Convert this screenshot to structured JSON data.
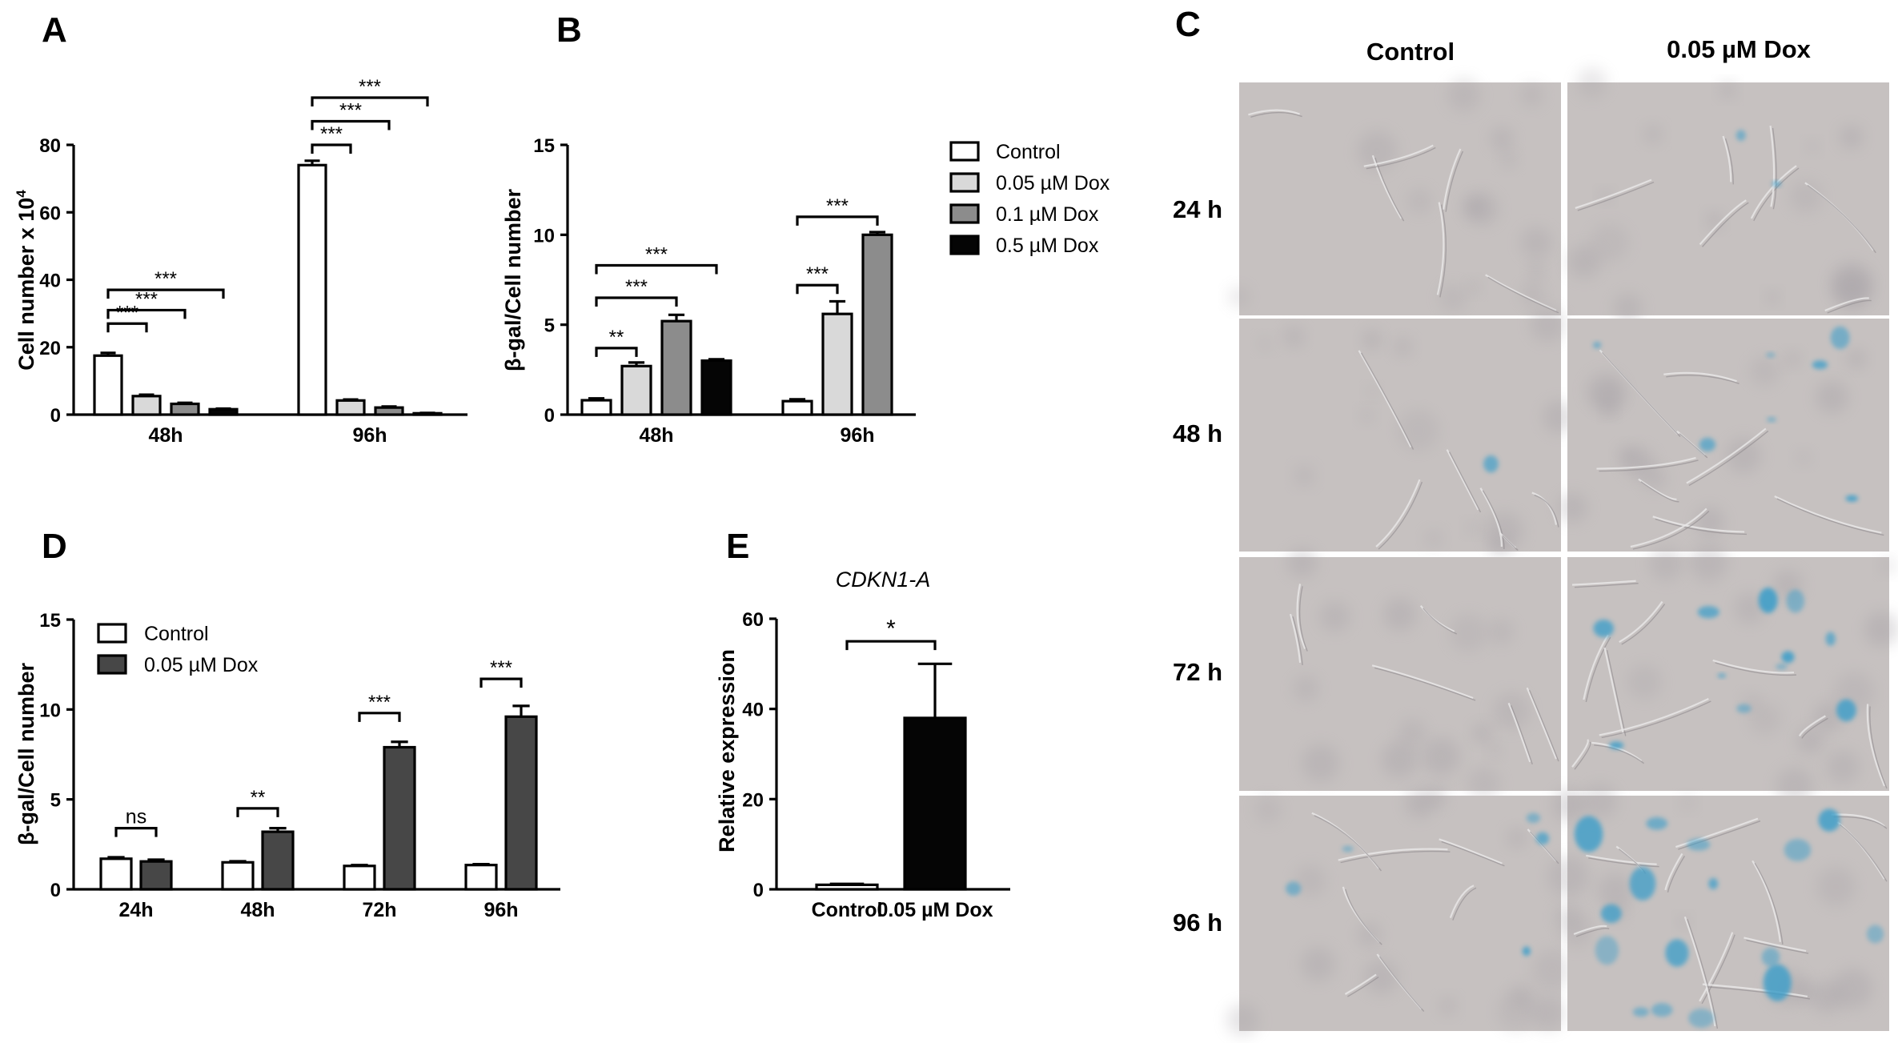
{
  "panel_letters": {
    "A": "A",
    "B": "B",
    "C": "C",
    "D": "D",
    "E": "E"
  },
  "colors": {
    "control": "#ffffff",
    "dox_005": "#d9d9d9",
    "dox_01": "#8c8c8c",
    "dox_05": "#050505",
    "dox_005_D": "#474747",
    "E_dox": "#050505",
    "micro_bg": "#c6c1c0",
    "stain": "#3f9fc9"
  },
  "legend_B": [
    "Control",
    "0.05 µM Dox",
    "0.1 µM Dox",
    "0.5 µM Dox"
  ],
  "legend_D": [
    "Control",
    "0.05 µM Dox"
  ],
  "panel_C": {
    "column_labels": [
      "Control",
      "0.05 µM Dox"
    ],
    "row_labels": [
      "24 h",
      "48 h",
      "72 h",
      "96 h"
    ],
    "stain_level": [
      [
        0.0,
        0.15
      ],
      [
        0.05,
        0.45
      ],
      [
        0.0,
        0.7
      ],
      [
        0.3,
        1.0
      ]
    ]
  },
  "chart_data": [
    {
      "panel": "A",
      "type": "bar",
      "title": "",
      "xlabel": "",
      "ylabel": "Cell number x 10",
      "ylabel_sup": "4",
      "ylim": [
        0,
        80
      ],
      "yticks": [
        0,
        20,
        40,
        60,
        80
      ],
      "categories": [
        "48h",
        "96h"
      ],
      "series": [
        {
          "values": [
            17.5,
            74
          ],
          "errors": [
            0.8,
            1.3
          ]
        },
        {
          "values": [
            5.5,
            4.2
          ],
          "errors": [
            0.4,
            0.3
          ]
        },
        {
          "values": [
            3.2,
            2.1
          ],
          "errors": [
            0.3,
            0.3
          ]
        },
        {
          "values": [
            1.6,
            0.4
          ],
          "errors": [
            0.2,
            0.1
          ]
        }
      ],
      "brackets": [
        {
          "cat": 0,
          "from": 0,
          "to": 1,
          "y": 27,
          "label": "***"
        },
        {
          "cat": 0,
          "from": 0,
          "to": 2,
          "y": 31,
          "label": "***"
        },
        {
          "cat": 0,
          "from": 0,
          "to": 3,
          "y": 37,
          "label": "***"
        },
        {
          "cat": 1,
          "from": 0,
          "to": 1,
          "y": 80,
          "label": "***"
        },
        {
          "cat": 1,
          "from": 0,
          "to": 2,
          "y": 87,
          "label": "***"
        },
        {
          "cat": 1,
          "from": 0,
          "to": 3,
          "y": 94,
          "label": "***"
        }
      ]
    },
    {
      "panel": "B",
      "type": "bar",
      "title": "",
      "xlabel": "",
      "ylabel": "β-gal/Cell number",
      "ylim": [
        0,
        15
      ],
      "yticks": [
        0,
        5,
        10,
        15
      ],
      "categories": [
        "48h",
        "96h"
      ],
      "series": [
        {
          "name": "Control",
          "values": [
            0.8,
            0.75
          ],
          "errors": [
            0.1,
            0.1
          ]
        },
        {
          "name": "0.05 µM Dox",
          "values": [
            2.7,
            5.6
          ],
          "errors": [
            0.2,
            0.7
          ]
        },
        {
          "name": "0.1 µM Dox",
          "values": [
            5.2,
            10.0
          ],
          "errors": [
            0.35,
            0.15
          ]
        },
        {
          "name": "0.5 µM Dox",
          "values": [
            3.0,
            null
          ],
          "errors": [
            0.08,
            0
          ]
        }
      ],
      "legend_position": "top-right",
      "brackets": [
        {
          "cat": 0,
          "from": 0,
          "to": 1,
          "y": 3.7,
          "label": "**"
        },
        {
          "cat": 0,
          "from": 0,
          "to": 2,
          "y": 6.5,
          "label": "***"
        },
        {
          "cat": 0,
          "from": 0,
          "to": 3,
          "y": 8.3,
          "label": "***"
        },
        {
          "cat": 1,
          "from": 0,
          "to": 1,
          "y": 7.2,
          "label": "***"
        },
        {
          "cat": 1,
          "from": 0,
          "to": 2,
          "y": 11.0,
          "label": "***"
        }
      ]
    },
    {
      "panel": "D",
      "type": "bar",
      "title": "",
      "xlabel": "",
      "ylabel": "β-gal/Cell number",
      "ylim": [
        0,
        15
      ],
      "yticks": [
        0,
        5,
        10,
        15
      ],
      "categories": [
        "24h",
        "48h",
        "72h",
        "96h"
      ],
      "series": [
        {
          "name": "Control",
          "values": [
            1.7,
            1.5,
            1.3,
            1.35
          ],
          "errors": [
            0.08,
            0.06,
            0.05,
            0.05
          ]
        },
        {
          "name": "0.05 µM Dox",
          "values": [
            1.55,
            3.2,
            7.9,
            9.6
          ],
          "errors": [
            0.1,
            0.2,
            0.3,
            0.6
          ]
        }
      ],
      "legend_position": "top-left",
      "brackets": [
        {
          "cat": 0,
          "from": 0,
          "to": 1,
          "y": 3.4,
          "label": "ns"
        },
        {
          "cat": 1,
          "from": 0,
          "to": 1,
          "y": 4.5,
          "label": "**"
        },
        {
          "cat": 2,
          "from": 0,
          "to": 1,
          "y": 9.8,
          "label": "***"
        },
        {
          "cat": 3,
          "from": 0,
          "to": 1,
          "y": 11.7,
          "label": "***"
        }
      ]
    },
    {
      "panel": "E",
      "type": "bar",
      "title": "CDKN1-A",
      "xlabel": "",
      "ylabel": "Relative expression",
      "ylim": [
        0,
        60
      ],
      "yticks": [
        0,
        20,
        40,
        60
      ],
      "categories": [
        "Control",
        "0.05 µM Dox"
      ],
      "values": [
        1.0,
        38
      ],
      "errors": [
        0.2,
        12
      ],
      "brackets": [
        {
          "from": 0,
          "to": 1,
          "y": 55,
          "label": "*"
        }
      ]
    }
  ]
}
